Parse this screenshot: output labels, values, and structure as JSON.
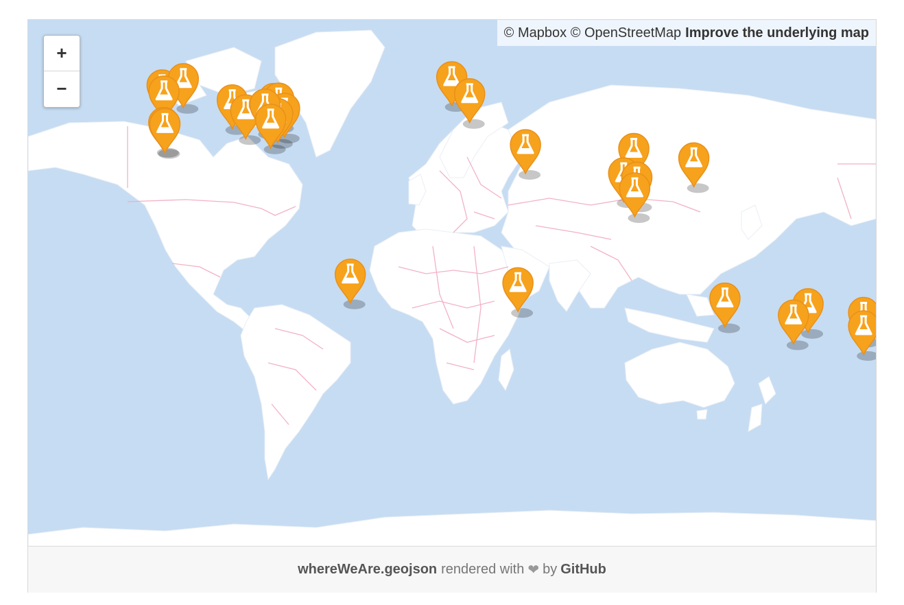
{
  "attribution": {
    "mapbox": "© Mapbox",
    "osm": "© OpenStreetMap",
    "improve": "Improve the underlying map"
  },
  "zoom": {
    "in": "+",
    "out": "−"
  },
  "footer": {
    "filename": "whereWeAre.geojson",
    "rendered_with": "rendered with",
    "heart": "❤",
    "by": "by",
    "github": "GitHub"
  },
  "marker": {
    "icon": "flask-icon",
    "color": "#f7a21c",
    "icon_color": "#ffffff"
  },
  "colors": {
    "ocean": "#c6dcf2",
    "land": "#ffffff",
    "border": "#f2a9c0"
  },
  "markers": [
    {
      "name": "marker-vancouver",
      "lon": -123.1,
      "lat": 49.3
    },
    {
      "name": "marker-calgary",
      "lon": -114.1,
      "lat": 51.0
    },
    {
      "name": "marker-seattle",
      "lon": -122.3,
      "lat": 47.6
    },
    {
      "name": "marker-sanfrancisco",
      "lon": -122.4,
      "lat": 37.8
    },
    {
      "name": "marker-bayarea",
      "lon": -121.9,
      "lat": 37.4
    },
    {
      "name": "marker-minneapolis",
      "lon": -93.3,
      "lat": 45.0
    },
    {
      "name": "marker-chicago",
      "lon": -87.6,
      "lat": 41.9
    },
    {
      "name": "marker-ottawa",
      "lon": -75.7,
      "lat": 45.4
    },
    {
      "name": "marker-montreal",
      "lon": -73.6,
      "lat": 45.5
    },
    {
      "name": "marker-boston",
      "lon": -71.1,
      "lat": 42.4
    },
    {
      "name": "marker-newyork",
      "lon": -74.0,
      "lat": 40.7
    },
    {
      "name": "marker-toronto",
      "lon": -79.4,
      "lat": 43.7
    },
    {
      "name": "marker-dc",
      "lon": -77.0,
      "lat": 38.9
    },
    {
      "name": "marker-london",
      "lon": -0.1,
      "lat": 51.5
    },
    {
      "name": "marker-switzerland",
      "lon": 7.5,
      "lat": 46.8
    },
    {
      "name": "marker-cairo",
      "lon": 31.2,
      "lat": 30.0
    },
    {
      "name": "marker-delhi",
      "lon": 77.2,
      "lat": 28.6
    },
    {
      "name": "marker-kunming",
      "lon": 102.7,
      "lat": 25.0
    },
    {
      "name": "marker-mumbai",
      "lon": 72.9,
      "lat": 19.1
    },
    {
      "name": "marker-hyderabad",
      "lon": 78.5,
      "lat": 17.4
    },
    {
      "name": "marker-bangalore",
      "lon": 77.6,
      "lat": 13.0
    },
    {
      "name": "marker-riodejaneiro",
      "lon": -43.2,
      "lat": -22.9
    },
    {
      "name": "marker-johannesburg",
      "lon": 28.0,
      "lat": -26.2
    },
    {
      "name": "marker-perth",
      "lon": 115.9,
      "lat": -31.9
    },
    {
      "name": "marker-sydney",
      "lon": 151.2,
      "lat": -33.9
    },
    {
      "name": "marker-melbourne",
      "lon": 145.0,
      "lat": -37.8
    },
    {
      "name": "marker-auckland",
      "lon": 174.8,
      "lat": -36.9
    },
    {
      "name": "marker-wellington",
      "lon": 174.8,
      "lat": -41.3
    }
  ]
}
